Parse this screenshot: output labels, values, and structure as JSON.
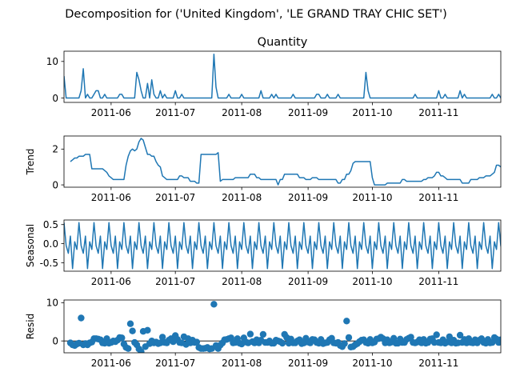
{
  "figure_title": "Decomposition for ('United Kingdom', 'LE GRAND TRAY CHIC SET')",
  "series_color": "#1f77b4",
  "x_tick_labels": [
    "2011-06",
    "2011-07",
    "2011-08",
    "2011-09",
    "2011-10",
    "2011-11"
  ],
  "chart_data": [
    {
      "type": "line",
      "title": "Quantity",
      "ylabel": "",
      "xlim": [
        "2011-05-10",
        "2011-11-30"
      ],
      "ylim": [
        -1.2,
        12.8
      ],
      "yticks": [
        0,
        10
      ],
      "x_start": "2011-05-10",
      "values": [
        6,
        0,
        0,
        0,
        0,
        0,
        0,
        0,
        2,
        8,
        0,
        1,
        0,
        0,
        1,
        2,
        2,
        0,
        0,
        1,
        0,
        0,
        0,
        0,
        0,
        0,
        1,
        1,
        0,
        0,
        0,
        0,
        0,
        0,
        7,
        5,
        2,
        0,
        0,
        4,
        0,
        5,
        1,
        0,
        0,
        2,
        0,
        1,
        0,
        0,
        0,
        0,
        2,
        0,
        0,
        1,
        0,
        0,
        0,
        0,
        0,
        0,
        0,
        0,
        0,
        0,
        0,
        0,
        0,
        0,
        12,
        3,
        0,
        0,
        0,
        0,
        0,
        1,
        0,
        0,
        0,
        0,
        0,
        1,
        0,
        0,
        0,
        0,
        0,
        0,
        0,
        0,
        2,
        0,
        0,
        0,
        0,
        1,
        0,
        1,
        0,
        0,
        0,
        0,
        0,
        0,
        0,
        1,
        0,
        0,
        0,
        0,
        0,
        0,
        0,
        0,
        0,
        0,
        1,
        1,
        0,
        0,
        0,
        1,
        0,
        0,
        0,
        0,
        1,
        0,
        0,
        0,
        0,
        0,
        0,
        0,
        0,
        0,
        0,
        0,
        0,
        7,
        2,
        0,
        0,
        0,
        0,
        0,
        0,
        0,
        0,
        0,
        0,
        0,
        0,
        0,
        0,
        0,
        0,
        0,
        0,
        0,
        0,
        0,
        1,
        0,
        0,
        0,
        0,
        0,
        0,
        0,
        0,
        0,
        0,
        2,
        0,
        0,
        1,
        0,
        0,
        0,
        0,
        0,
        0,
        2,
        0,
        1,
        0,
        0,
        0,
        0,
        0,
        0,
        0,
        0,
        0,
        0,
        0,
        0,
        1,
        0,
        0,
        1,
        0,
        1,
        0,
        0,
        0,
        0,
        5,
        0,
        0,
        0,
        1,
        0,
        0,
        0,
        0,
        0,
        0,
        0,
        0,
        1,
        0,
        1,
        0,
        0,
        0,
        0,
        1,
        2,
        0,
        0,
        1,
        0,
        0,
        1,
        3,
        0,
        0,
        0,
        0,
        0,
        2,
        0,
        0,
        0,
        0,
        0,
        0,
        0,
        0,
        0,
        1,
        0,
        0,
        0,
        0,
        1,
        0,
        0,
        0,
        0,
        0,
        1
      ]
    },
    {
      "type": "line",
      "ylabel": "Trend",
      "xlim": [
        "2011-05-10",
        "2011-11-30"
      ],
      "ylim": [
        -0.13,
        2.73
      ],
      "yticks": [
        0,
        2
      ],
      "x_start": "2011-05-13",
      "values": [
        1.3,
        1.4,
        1.5,
        1.5,
        1.6,
        1.6,
        1.6,
        1.7,
        1.7,
        1.7,
        0.9,
        0.9,
        0.9,
        0.9,
        0.9,
        0.9,
        0.8,
        0.7,
        0.5,
        0.4,
        0.3,
        0.3,
        0.3,
        0.3,
        0.3,
        0.3,
        1.1,
        1.6,
        1.9,
        2.0,
        1.9,
        2.0,
        2.4,
        2.6,
        2.5,
        2.1,
        1.7,
        1.7,
        1.6,
        1.6,
        1.3,
        1.1,
        1.0,
        0.5,
        0.4,
        0.3,
        0.3,
        0.3,
        0.3,
        0.3,
        0.3,
        0.5,
        0.5,
        0.4,
        0.4,
        0.4,
        0.2,
        0.2,
        0.2,
        0.1,
        0.1,
        1.7,
        1.7,
        1.7,
        1.7,
        1.7,
        1.7,
        1.7,
        1.7,
        1.8,
        0.2,
        0.3,
        0.3,
        0.3,
        0.3,
        0.3,
        0.3,
        0.4,
        0.4,
        0.4,
        0.4,
        0.4,
        0.4,
        0.4,
        0.6,
        0.6,
        0.6,
        0.4,
        0.4,
        0.3,
        0.3,
        0.3,
        0.3,
        0.3,
        0.3,
        0.3,
        0.3,
        0.0,
        0.3,
        0.3,
        0.6,
        0.6,
        0.6,
        0.6,
        0.6,
        0.6,
        0.6,
        0.4,
        0.4,
        0.4,
        0.3,
        0.3,
        0.3,
        0.4,
        0.4,
        0.4,
        0.3,
        0.3,
        0.3,
        0.3,
        0.3,
        0.3,
        0.3,
        0.3,
        0.3,
        0.1,
        0.1,
        0.3,
        0.3,
        0.6,
        0.6,
        0.8,
        1.2,
        1.3,
        1.3,
        1.3,
        1.3,
        1.3,
        1.3,
        1.3,
        1.3,
        0.4,
        0.0,
        0.0,
        0.0,
        0.0,
        0.0,
        0.0,
        0.1,
        0.1,
        0.1,
        0.1,
        0.1,
        0.1,
        0.1,
        0.3,
        0.3,
        0.2,
        0.2,
        0.2,
        0.2,
        0.2,
        0.2,
        0.2,
        0.2,
        0.3,
        0.3,
        0.4,
        0.4,
        0.4,
        0.5,
        0.7,
        0.7,
        0.5,
        0.5,
        0.4,
        0.3,
        0.3,
        0.3,
        0.3,
        0.3,
        0.3,
        0.3,
        0.1,
        0.1,
        0.1,
        0.1,
        0.3,
        0.3,
        0.3,
        0.3,
        0.4,
        0.4,
        0.4,
        0.5,
        0.5,
        0.5,
        0.6,
        0.7,
        1.1,
        1.1,
        1.0,
        1.0,
        0.9,
        1.0,
        0.9,
        0.7,
        0.6,
        0.3,
        0.3,
        0.3,
        0.4,
        0.4,
        0.5,
        0.5,
        0.3,
        0.3,
        0.8,
        0.8,
        0.8,
        0.6,
        0.7,
        0.9,
        1.0,
        1.0,
        1.0,
        1.0,
        0.8,
        0.7,
        0.7,
        0.3,
        0.3,
        0.3,
        0.3,
        0.3,
        0.3,
        0.3,
        0.8,
        0.8,
        0.6,
        0.7,
        0.7,
        0.9,
        1.1,
        0.8,
        0.5,
        0.4,
        0.4,
        0.4,
        0.2,
        0.2,
        0.2,
        0.2,
        0.3,
        0.3,
        0.2,
        0.2,
        0.2,
        0.2,
        0.2,
        0.2,
        0.2,
        0.2
      ]
    },
    {
      "type": "line",
      "ylabel": "Seasonal",
      "xlim": [
        "2011-05-10",
        "2011-11-30"
      ],
      "ylim": [
        -0.72,
        0.62
      ],
      "yticks": [
        -0.5,
        0.0,
        0.5
      ],
      "x_start": "2011-05-10",
      "period": 7,
      "pattern": [
        0.55,
        -0.05,
        -0.25,
        0.2,
        -0.65,
        0.05,
        -0.15
      ],
      "count": 274
    },
    {
      "type": "scatter",
      "ylabel": "Resid",
      "xlim": [
        "2011-05-10",
        "2011-11-30"
      ],
      "ylim": [
        -3.1,
        10.7
      ],
      "yticks": [
        0,
        10
      ],
      "baseline": 0,
      "x_start": "2011-05-13",
      "values": [
        -0.5,
        -1.0,
        -1.2,
        -0.8,
        -0.6,
        6.0,
        -1.0,
        -0.7,
        -1.0,
        -0.5,
        -0.3,
        0.6,
        0.6,
        0.5,
        0.3,
        -0.5,
        -0.6,
        0.6,
        -0.6,
        -0.4,
        0.0,
        -0.2,
        0.2,
        0.9,
        0.8,
        -0.8,
        -1.7,
        -2.0,
        4.5,
        2.6,
        -0.4,
        -1.0,
        -2.1,
        -2.8,
        2.5,
        -1.5,
        2.8,
        -0.7,
        0.0,
        -0.5,
        -0.3,
        -0.7,
        -0.5,
        1.0,
        -0.4,
        -0.5,
        0.2,
        0.6,
        -0.2,
        1.4,
        0.4,
        -0.4,
        -0.5,
        1.1,
        -0.9,
        0.6,
        -0.5,
        0.2,
        -0.4,
        -0.3,
        -1.7,
        -2.0,
        -2.0,
        -1.9,
        -1.7,
        -2.1,
        -2.0,
        9.6,
        -1.2,
        -2.0,
        -1.1,
        -0.5,
        0.3,
        0.4,
        0.6,
        0.8,
        -0.5,
        -0.4,
        0.6,
        -0.6,
        -0.8,
        0.8,
        -0.3,
        -0.5,
        1.8,
        -0.2,
        -0.5,
        0.3,
        -0.5,
        0.2,
        1.7,
        -0.4,
        -0.4,
        0.0,
        -0.6,
        -0.6,
        0.2,
        0.0,
        -0.2,
        -0.6,
        1.7,
        0.9,
        -0.6,
        0.5,
        -0.5,
        -0.5,
        0.0,
        0.3,
        -0.7,
        -0.5,
        0.7,
        -0.3,
        -0.5,
        0.4,
        0.3,
        -0.4,
        -0.6,
        0.4,
        -0.7,
        -0.5,
        -0.4,
        0.3,
        0.7,
        -0.5,
        -0.6,
        -0.4,
        -1.2,
        -1.5,
        -0.7,
        5.2,
        0.9,
        -1.6,
        -1.5,
        -1.0,
        -0.7,
        -0.2,
        0.2,
        0.3,
        -0.4,
        -0.6,
        0.4,
        -0.5,
        -0.3,
        0.5,
        0.6,
        1.0,
        0.6,
        -0.5,
        0.3,
        -0.5,
        -0.3,
        0.7,
        -0.6,
        -0.6,
        0.5,
        -0.4,
        -0.4,
        0.4,
        0.7,
        1.0,
        -0.4,
        -0.5,
        -0.3,
        0.3,
        -0.5,
        0.4,
        -0.6,
        -0.4,
        0.5,
        0.6,
        -0.4,
        1.6,
        -0.4,
        -0.5,
        0.3,
        -0.6,
        -0.3,
        1.1,
        -0.5,
        0.2,
        -0.6,
        -0.5,
        1.5,
        -0.4,
        0.4,
        -0.5,
        0.6,
        -0.4,
        -0.5,
        0.3,
        -0.5,
        0.2,
        0.6,
        -0.4,
        -0.6,
        0.4,
        -0.5,
        -0.4,
        0.9,
        0.5,
        -0.4,
        0.3,
        -0.5,
        -0.6,
        -0.3,
        -0.6,
        3.8,
        -0.7,
        -0.5,
        0.4,
        0.5,
        -0.6,
        -0.4,
        0.5,
        1.9,
        -0.6,
        0.3,
        -0.5,
        -0.6,
        0.4,
        0.7,
        -0.5,
        -0.4,
        1.0,
        0.3,
        0.6,
        -0.6,
        1.9,
        -0.4,
        0.4,
        -0.5,
        0.6,
        -0.5,
        0.3,
        0.8,
        -0.6,
        -0.4,
        1.7,
        -0.5,
        0.4,
        -0.4,
        0.3,
        1.8,
        -0.6,
        -0.5,
        0.2,
        0.4,
        -0.5,
        0.6,
        -0.3,
        -0.5,
        0.8,
        0.3,
        -0.6,
        0.4,
        -0.4,
        -0.5,
        0.5,
        0.6,
        -0.5,
        0.7,
        -0.4,
        -0.3
      ]
    }
  ]
}
